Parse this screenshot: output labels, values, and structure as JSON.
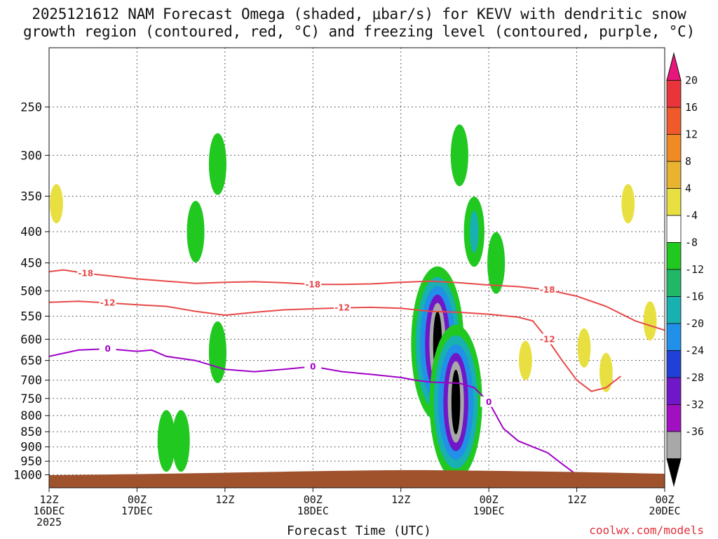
{
  "title_line1": "2025121612 NAM Forecast Omega (shaded, μbar/s) for KEVV with dendritic snow",
  "title_line2": "growth region (contoured, red, °C) and freezing level (contoured, purple, °C)",
  "credit": "coolwx.com/models",
  "chart_data": {
    "type": "time-height cross section (shaded omega, contoured temperature)",
    "xlabel": "Forecast Time (UTC)",
    "x_ticks": [
      {
        "line1": "12Z",
        "line2": "16DEC",
        "line3": "2025"
      },
      {
        "line1": "00Z",
        "line2": "17DEC",
        "line3": ""
      },
      {
        "line1": "12Z",
        "line2": "",
        "line3": ""
      },
      {
        "line1": "00Z",
        "line2": "18DEC",
        "line3": ""
      },
      {
        "line1": "12Z",
        "line2": "",
        "line3": ""
      },
      {
        "line1": "00Z",
        "line2": "19DEC",
        "line3": ""
      },
      {
        "line1": "12Z",
        "line2": "",
        "line3": ""
      },
      {
        "line1": "00Z",
        "line2": "20DEC",
        "line3": ""
      }
    ],
    "x_hours_range": [
      0,
      84
    ],
    "y_axis": "pressure (hPa), log scale",
    "y_ticks": [
      250,
      300,
      350,
      400,
      450,
      500,
      550,
      600,
      650,
      700,
      750,
      800,
      850,
      900,
      950,
      1000
    ],
    "ylim": [
      1050,
      200
    ],
    "grid": true,
    "colorbar": {
      "ticks": [
        "20",
        "16",
        "12",
        "8",
        "4",
        "-4",
        "-8",
        "-12",
        "-16",
        "-20",
        "-24",
        "-28",
        "-32",
        "-36"
      ],
      "colors": [
        "#e8167a",
        "#e8343a",
        "#f05a2a",
        "#f08a22",
        "#e8b430",
        "#e8e040",
        "#ffffff",
        "#20c820",
        "#20b868",
        "#18b0b0",
        "#2090e8",
        "#2040d8",
        "#7018c8",
        "#a010c0",
        "#a8a8a8",
        "#000000"
      ]
    },
    "contours": [
      {
        "label": "-18",
        "color": "#e84848",
        "points": [
          [
            0,
            465
          ],
          [
            2,
            462
          ],
          [
            5,
            468
          ],
          [
            8,
            472
          ],
          [
            12,
            478
          ],
          [
            16,
            482
          ],
          [
            20,
            486
          ],
          [
            24,
            484
          ],
          [
            28,
            483
          ],
          [
            32,
            485
          ],
          [
            36,
            488
          ],
          [
            40,
            488
          ],
          [
            44,
            487
          ],
          [
            48,
            484
          ],
          [
            52,
            482
          ],
          [
            56,
            485
          ],
          [
            60,
            489
          ],
          [
            64,
            492
          ],
          [
            68,
            498
          ],
          [
            72,
            510
          ],
          [
            76,
            530
          ],
          [
            80,
            560
          ],
          [
            84,
            580
          ]
        ]
      },
      {
        "label": "-12",
        "color": "#e84848",
        "points": [
          [
            0,
            522
          ],
          [
            4,
            520
          ],
          [
            8,
            523
          ],
          [
            12,
            527
          ],
          [
            16,
            530
          ],
          [
            20,
            540
          ],
          [
            24,
            548
          ],
          [
            28,
            542
          ],
          [
            32,
            537
          ],
          [
            36,
            535
          ],
          [
            40,
            533
          ],
          [
            44,
            532
          ],
          [
            48,
            534
          ],
          [
            52,
            540
          ],
          [
            56,
            542
          ],
          [
            60,
            546
          ],
          [
            64,
            552
          ],
          [
            66,
            560
          ],
          [
            68,
            600
          ],
          [
            70,
            650
          ],
          [
            72,
            700
          ],
          [
            74,
            730
          ],
          [
            76,
            720
          ],
          [
            78,
            690
          ]
        ]
      },
      {
        "label": "0",
        "color": "#a000c8",
        "points": [
          [
            0,
            640
          ],
          [
            4,
            625
          ],
          [
            8,
            622
          ],
          [
            12,
            628
          ],
          [
            14,
            625
          ],
          [
            16,
            640
          ],
          [
            20,
            650
          ],
          [
            24,
            672
          ],
          [
            28,
            678
          ],
          [
            32,
            672
          ],
          [
            36,
            665
          ],
          [
            40,
            678
          ],
          [
            44,
            685
          ],
          [
            48,
            693
          ],
          [
            50,
            700
          ],
          [
            52,
            705
          ],
          [
            56,
            708
          ],
          [
            58,
            720
          ],
          [
            60,
            760
          ],
          [
            62,
            840
          ],
          [
            64,
            880
          ],
          [
            66,
            900
          ],
          [
            68,
            920
          ],
          [
            70,
            960
          ],
          [
            72,
            1000
          ]
        ]
      }
    ],
    "omega_features": [
      {
        "t": 1,
        "p": 360,
        "value": 4
      },
      {
        "t": 20,
        "p": 400,
        "value": -8
      },
      {
        "t": 23,
        "p": 310,
        "value": -8
      },
      {
        "t": 23,
        "p": 630,
        "value": -8
      },
      {
        "t": 16,
        "p": 880,
        "value": -8
      },
      {
        "t": 18,
        "p": 880,
        "value": -8
      },
      {
        "t": 53,
        "p": 610,
        "value": -36
      },
      {
        "t": 55.5,
        "p": 760,
        "value": -36
      },
      {
        "t": 56,
        "p": 300,
        "value": -8
      },
      {
        "t": 58,
        "p": 400,
        "value": -12
      },
      {
        "t": 61,
        "p": 450,
        "value": -8
      },
      {
        "t": 65,
        "p": 650,
        "value": 4
      },
      {
        "t": 73,
        "p": 620,
        "value": 4
      },
      {
        "t": 76,
        "p": 680,
        "value": 4
      },
      {
        "t": 79,
        "p": 360,
        "value": 4
      },
      {
        "t": 82,
        "p": 560,
        "value": 4
      }
    ]
  }
}
